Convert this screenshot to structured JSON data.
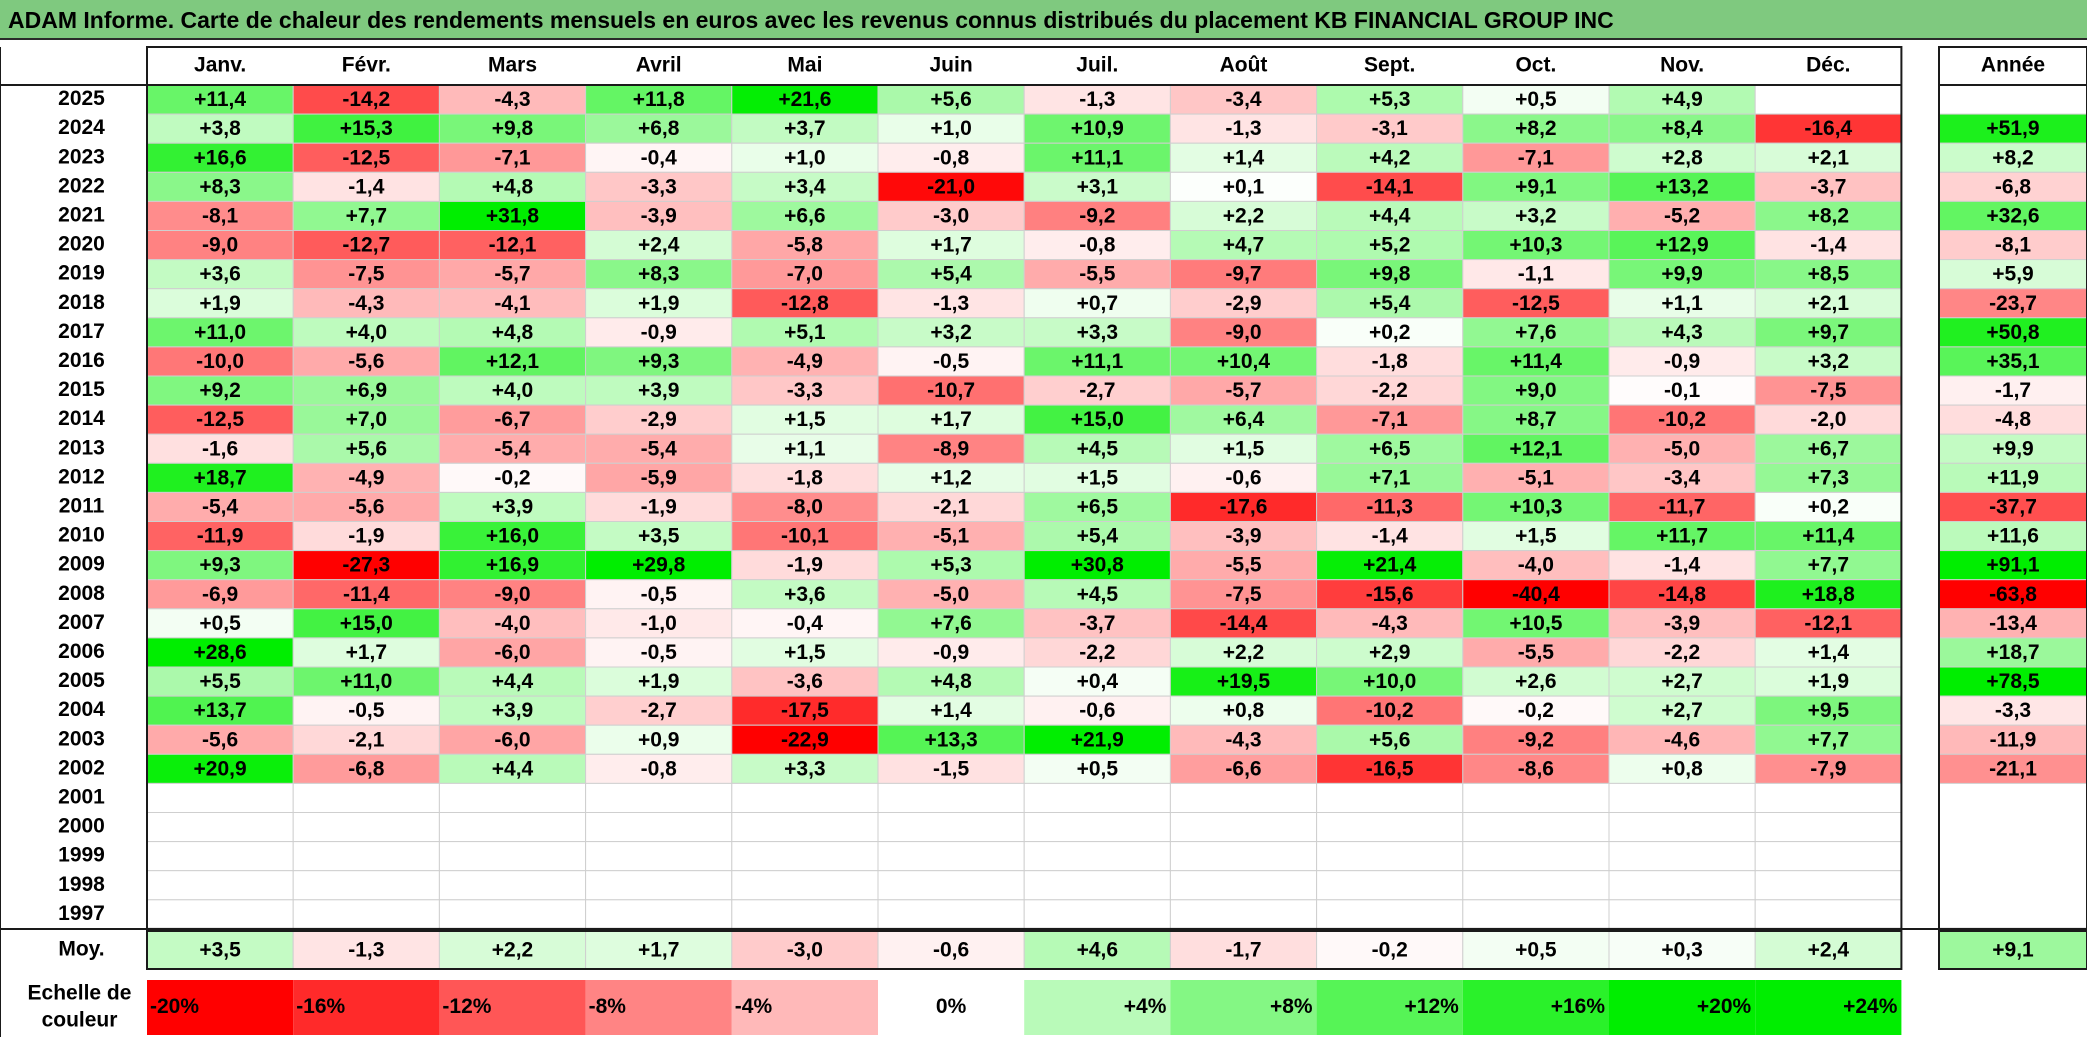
{
  "title": "ADAM Informe. Carte de chaleur des rendements mensuels en euros avec les revenus connus distribués du placement KB FINANCIAL GROUP INC",
  "chart_data": {
    "type": "heatmap",
    "months": [
      "Janv.",
      "Févr.",
      "Mars",
      "Avril",
      "Mai",
      "Juin",
      "Juil.",
      "Août",
      "Sept.",
      "Oct.",
      "Nov.",
      "Déc."
    ],
    "year_header": "Année",
    "years": [
      "2025",
      "2024",
      "2023",
      "2022",
      "2021",
      "2020",
      "2019",
      "2018",
      "2017",
      "2016",
      "2015",
      "2014",
      "2013",
      "2012",
      "2011",
      "2010",
      "2009",
      "2008",
      "2007",
      "2006",
      "2005",
      "2004",
      "2003",
      "2002",
      "2001",
      "2000",
      "1999",
      "1998",
      "1997"
    ],
    "values": [
      [
        11.4,
        -14.2,
        -4.3,
        11.8,
        21.6,
        5.6,
        -1.3,
        -3.4,
        5.3,
        0.5,
        4.9,
        null
      ],
      [
        3.8,
        15.3,
        9.8,
        6.8,
        3.7,
        1.0,
        10.9,
        -1.3,
        -3.1,
        8.2,
        8.4,
        -16.4
      ],
      [
        16.6,
        -12.5,
        -7.1,
        -0.4,
        1.0,
        -0.8,
        11.1,
        1.4,
        4.2,
        -7.1,
        2.8,
        2.1
      ],
      [
        8.3,
        -1.4,
        4.8,
        -3.3,
        3.4,
        -21.0,
        3.1,
        0.1,
        -14.1,
        9.1,
        13.2,
        -3.7
      ],
      [
        -8.1,
        7.7,
        31.8,
        -3.9,
        6.6,
        -3.0,
        -9.2,
        2.2,
        4.4,
        3.2,
        -5.2,
        8.2
      ],
      [
        -9.0,
        -12.7,
        -12.1,
        2.4,
        -5.8,
        1.7,
        -0.8,
        4.7,
        5.2,
        10.3,
        12.9,
        -1.4
      ],
      [
        3.6,
        -7.5,
        -5.7,
        8.3,
        -7.0,
        5.4,
        -5.5,
        -9.7,
        9.8,
        -1.1,
        9.9,
        8.5
      ],
      [
        1.9,
        -4.3,
        -4.1,
        1.9,
        -12.8,
        -1.3,
        0.7,
        -2.9,
        5.4,
        -12.5,
        1.1,
        2.1
      ],
      [
        11.0,
        4.0,
        4.8,
        -0.9,
        5.1,
        3.2,
        3.3,
        -9.0,
        0.2,
        7.6,
        4.3,
        9.7
      ],
      [
        -10.0,
        -5.6,
        12.1,
        9.3,
        -4.9,
        -0.5,
        11.1,
        10.4,
        -1.8,
        11.4,
        -0.9,
        3.2
      ],
      [
        9.2,
        6.9,
        4.0,
        3.9,
        -3.3,
        -10.7,
        -2.7,
        -5.7,
        -2.2,
        9.0,
        -0.1,
        -7.5
      ],
      [
        -12.5,
        7.0,
        -6.7,
        -2.9,
        1.5,
        1.7,
        15.0,
        6.4,
        -7.1,
        8.7,
        -10.2,
        -2.0
      ],
      [
        -1.6,
        5.6,
        -5.4,
        -5.4,
        1.1,
        -8.9,
        4.5,
        1.5,
        6.5,
        12.1,
        -5.0,
        6.7
      ],
      [
        18.7,
        -4.9,
        -0.2,
        -5.9,
        -1.8,
        1.2,
        1.5,
        -0.6,
        7.1,
        -5.1,
        -3.4,
        7.3
      ],
      [
        -5.4,
        -5.6,
        3.9,
        -1.9,
        -8.0,
        -2.1,
        6.5,
        -17.6,
        -11.3,
        10.3,
        -11.7,
        0.2
      ],
      [
        -11.9,
        -1.9,
        16.0,
        3.5,
        -10.1,
        -5.1,
        5.4,
        -3.9,
        -1.4,
        1.5,
        11.7,
        11.4
      ],
      [
        9.3,
        -27.3,
        16.9,
        29.8,
        -1.9,
        5.3,
        30.8,
        -5.5,
        21.4,
        -4.0,
        -1.4,
        7.7
      ],
      [
        -6.9,
        -11.4,
        -9.0,
        -0.5,
        3.6,
        -5.0,
        4.5,
        -7.5,
        -15.6,
        -40.4,
        -14.8,
        18.8
      ],
      [
        0.5,
        15.0,
        -4.0,
        -1.0,
        -0.4,
        7.6,
        -3.7,
        -14.4,
        -4.3,
        10.5,
        -3.9,
        -12.1
      ],
      [
        28.6,
        1.7,
        -6.0,
        -0.5,
        1.5,
        -0.9,
        -2.2,
        2.2,
        2.9,
        -5.5,
        -2.2,
        1.4
      ],
      [
        5.5,
        11.0,
        4.4,
        1.9,
        -3.6,
        4.8,
        0.4,
        19.5,
        10.0,
        2.6,
        2.7,
        1.9
      ],
      [
        13.7,
        -0.5,
        3.9,
        -2.7,
        -17.5,
        1.4,
        -0.6,
        0.8,
        -10.2,
        -0.2,
        2.7,
        9.5
      ],
      [
        -5.6,
        -2.1,
        -6.0,
        0.9,
        -22.9,
        13.3,
        21.9,
        -4.3,
        5.6,
        -9.2,
        -4.6,
        7.7
      ],
      [
        20.9,
        -6.8,
        4.4,
        -0.8,
        3.3,
        -1.5,
        0.5,
        -6.6,
        -16.5,
        -8.6,
        0.8,
        -7.9
      ],
      [
        null,
        null,
        null,
        null,
        null,
        null,
        null,
        null,
        null,
        null,
        null,
        null
      ],
      [
        null,
        null,
        null,
        null,
        null,
        null,
        null,
        null,
        null,
        null,
        null,
        null
      ],
      [
        null,
        null,
        null,
        null,
        null,
        null,
        null,
        null,
        null,
        null,
        null,
        null
      ],
      [
        null,
        null,
        null,
        null,
        null,
        null,
        null,
        null,
        null,
        null,
        null,
        null
      ],
      [
        null,
        null,
        null,
        null,
        null,
        null,
        null,
        null,
        null,
        null,
        null,
        null
      ]
    ],
    "annual": [
      null,
      51.9,
      8.2,
      -6.8,
      32.6,
      -8.1,
      5.9,
      -23.7,
      50.8,
      35.1,
      -1.7,
      -4.8,
      9.9,
      11.9,
      -37.7,
      11.6,
      91.1,
      -63.8,
      -13.4,
      18.7,
      78.5,
      -3.3,
      -11.9,
      -21.1,
      null,
      null,
      null,
      null,
      null
    ],
    "average_label": "Moy.",
    "monthly_average": [
      3.5,
      -1.3,
      2.2,
      1.7,
      -3.0,
      -0.6,
      4.6,
      -1.7,
      -0.2,
      0.5,
      0.3,
      2.4
    ],
    "annual_average": 9.1,
    "scale_label": "Echelle de couleur",
    "scale": [
      {
        "label": "-20%",
        "value": -20
      },
      {
        "label": "-16%",
        "value": -16
      },
      {
        "label": "-12%",
        "value": -12
      },
      {
        "label": "-8%",
        "value": -8
      },
      {
        "label": "-4%",
        "value": -4
      },
      {
        "label": "0%",
        "value": 0
      },
      {
        "label": "+4%",
        "value": 4
      },
      {
        "label": "+8%",
        "value": 8
      },
      {
        "label": "+12%",
        "value": 12
      },
      {
        "label": "+16%",
        "value": 16
      },
      {
        "label": "+20%",
        "value": 20
      },
      {
        "label": "+24%",
        "value": 24
      }
    ],
    "colors": {
      "negative": "#ff0000",
      "zero": "#ffffff",
      "positive": "#00ee00",
      "title_bg": "#7fc97f",
      "border": "#1a1a1a",
      "grid": "#cfcfcf"
    }
  }
}
